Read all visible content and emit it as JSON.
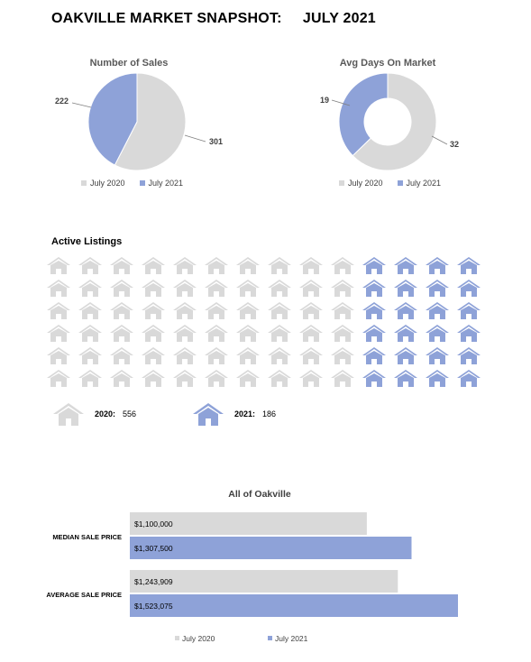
{
  "header": {
    "title": "OAKVILLE MARKET SNAPSHOT:",
    "period": "JULY 2021"
  },
  "colors": {
    "y2020": "#d9d9d9",
    "y2021": "#8ea2d8"
  },
  "legend": {
    "y2020": "July 2020",
    "y2021": "July 2021"
  },
  "chart_data": [
    {
      "type": "pie",
      "title": "Number of Sales",
      "series": [
        {
          "name": "July 2020",
          "value": 301
        },
        {
          "name": "July 2021",
          "value": 222
        }
      ]
    },
    {
      "type": "pie",
      "title": "Avg Days On Market",
      "donut": true,
      "series": [
        {
          "name": "July 2020",
          "value": 32
        },
        {
          "name": "July 2021",
          "value": 19
        }
      ]
    },
    {
      "type": "bar",
      "title": "Active Listings",
      "categories": [
        "2020",
        "2021"
      ],
      "values": [
        556,
        186
      ],
      "icon": "house-icon",
      "grid": {
        "rows": 6,
        "cols": 14,
        "highlight_cols": 4
      }
    },
    {
      "type": "bar",
      "orientation": "horizontal",
      "title": "All of Oakville",
      "categories": [
        "MEDIAN SALE PRICE",
        "AVERAGE SALE PRICE"
      ],
      "series": [
        {
          "name": "July 2020",
          "values": [
            1100000,
            1243909
          ],
          "labels": [
            "$1,100,000",
            "$1,243,909"
          ]
        },
        {
          "name": "July 2021",
          "values": [
            1307500,
            1523075
          ],
          "labels": [
            "$1,307,500",
            "$1,523,075"
          ]
        }
      ],
      "xlim": [
        0,
        1600000
      ]
    }
  ],
  "listings": {
    "label_2020": "2020:",
    "value_2020": "556",
    "label_2021": "2021:",
    "value_2021": "186"
  }
}
